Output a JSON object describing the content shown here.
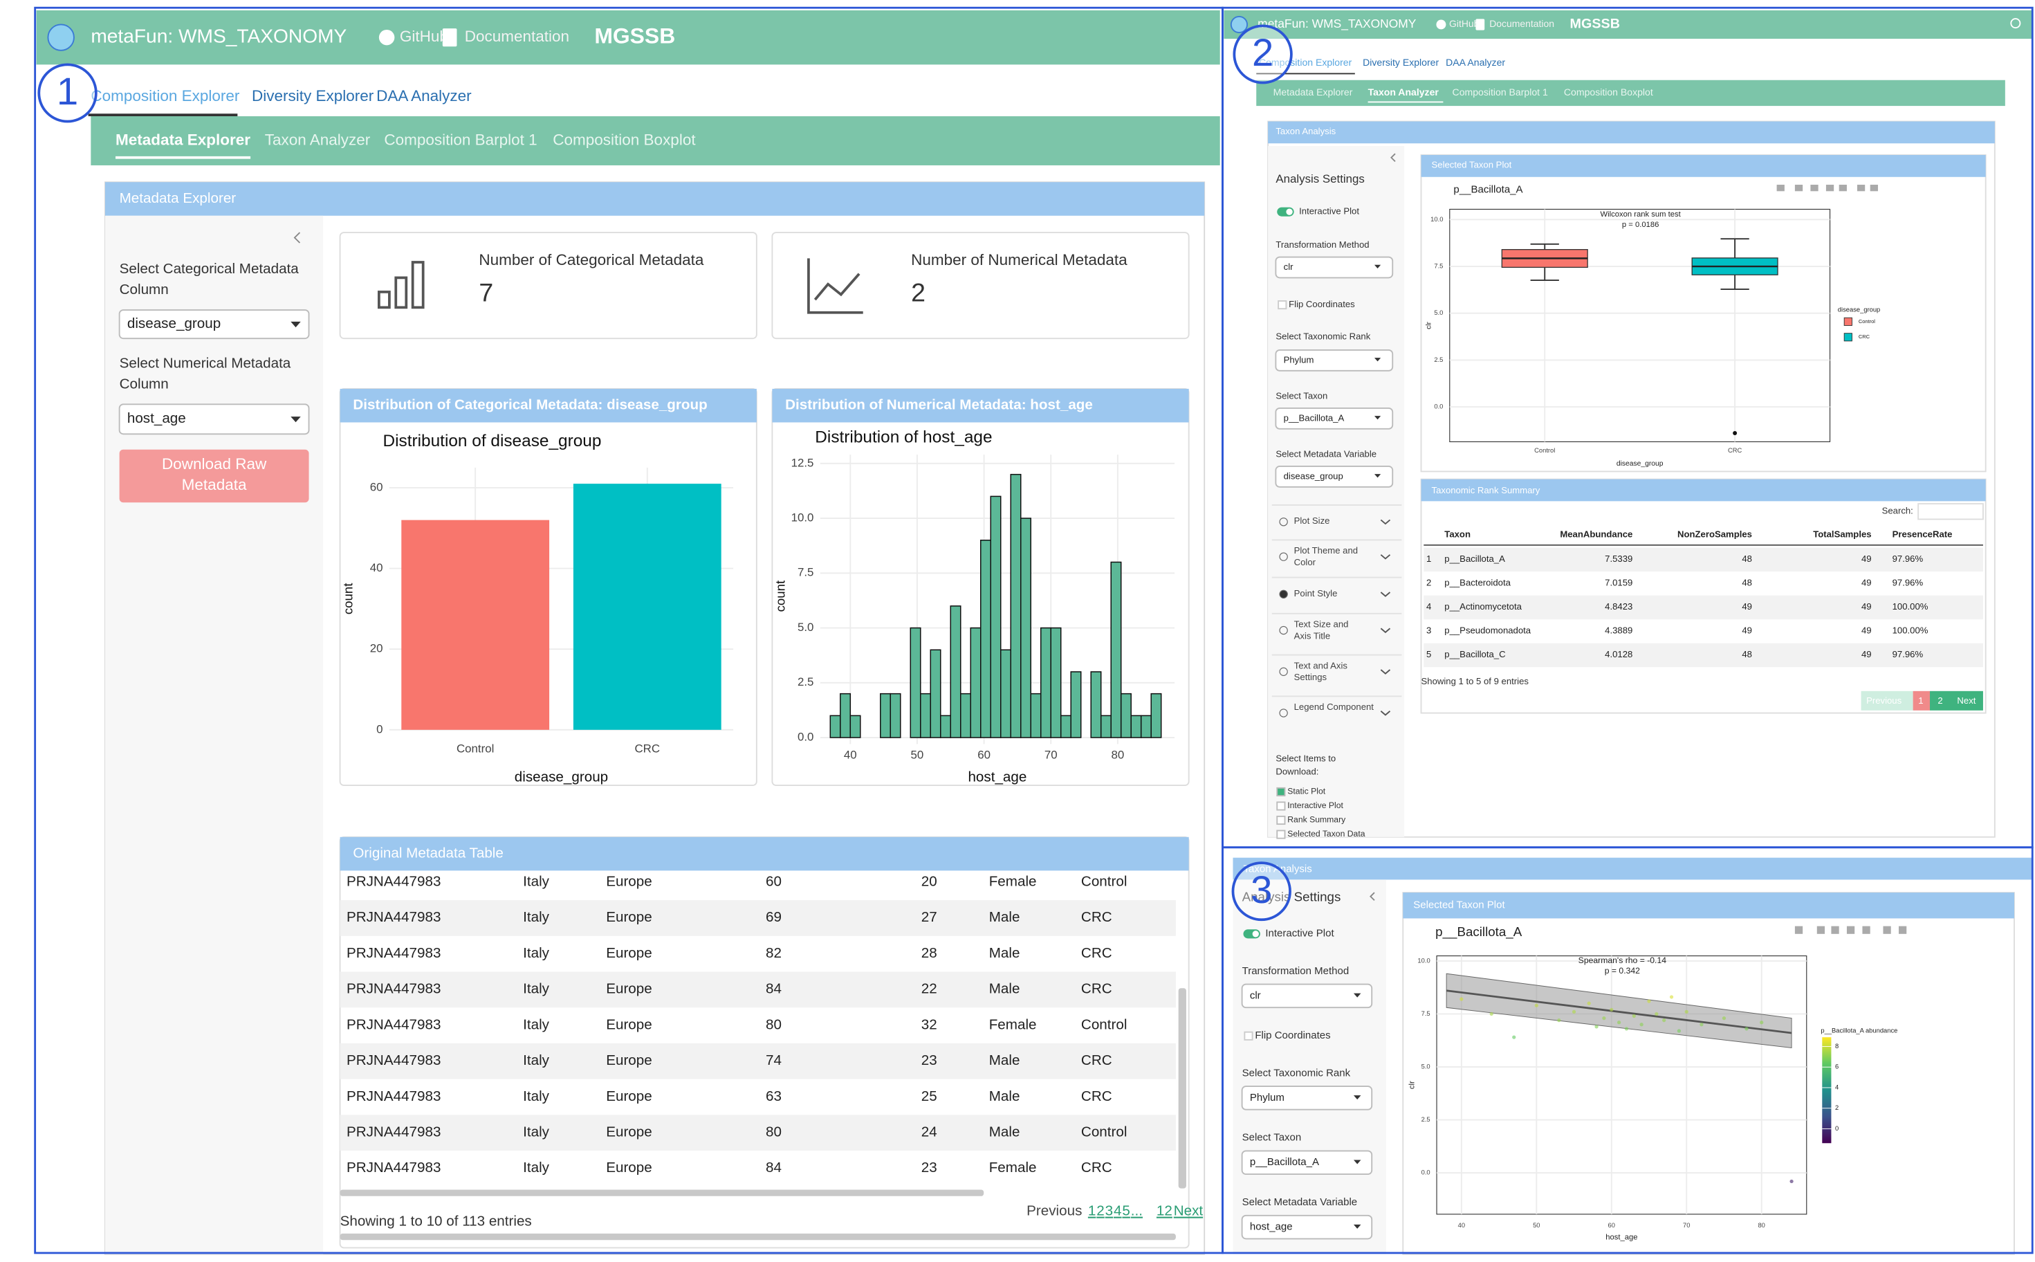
{
  "panel_labels": [
    "1",
    "2",
    "3"
  ],
  "app": {
    "title": "metaFun: WMS_TAXONOMY",
    "github": "GitHub",
    "docs": "Documentation",
    "brand": "MGSSB"
  },
  "main_tabs": [
    "Composition Explorer",
    "Diversity Explorer",
    "DAA Analyzer"
  ],
  "sub_tabs": [
    "Metadata Explorer",
    "Taxon Analyzer",
    "Composition Barplot 1",
    "Composition Boxplot"
  ],
  "panel1": {
    "section_title": "Metadata Explorer",
    "categorical_label": "Select Categorical Metadata Column",
    "categorical_value": "disease_group",
    "numerical_label": "Select Numerical Metadata Column",
    "numerical_value": "host_age",
    "download_button": "Download Raw Metadata",
    "stat_cards": [
      {
        "label": "Number of Categorical Metadata",
        "value": 7
      },
      {
        "label": "Number of Numerical Metadata",
        "value": 2
      }
    ],
    "bar_chart": {
      "type": "bar",
      "header": "Distribution of Categorical Metadata: disease_group",
      "title": "Distribution of disease_group",
      "x_label": "disease_group",
      "y_label": "count",
      "categories": [
        "Control",
        "CRC"
      ],
      "values": [
        52,
        61
      ],
      "colors": [
        "#f8766d",
        "#00bfc4"
      ],
      "ylim": [
        0,
        65
      ],
      "yticks": [
        0,
        20,
        40,
        60
      ]
    },
    "histogram": {
      "type": "histogram",
      "header": "Distribution of Numerical Metadata: host_age",
      "title": "Distribution of host_age",
      "x_label": "host_age",
      "y_label": "count",
      "color": "#5cb897",
      "bins": [
        37,
        38.5,
        40,
        41.5,
        43,
        44.5,
        46,
        47.5,
        49,
        50.5,
        52,
        53.5,
        55,
        56.5,
        58,
        59.5,
        61,
        62.5,
        64,
        65.5,
        67,
        68.5,
        70,
        71.5,
        73,
        74.5,
        76,
        77.5,
        79,
        80.5,
        82,
        83.5,
        85,
        86.5
      ],
      "counts": [
        1,
        2,
        1,
        0,
        0,
        2,
        2,
        0,
        5,
        2,
        4,
        1,
        6,
        2,
        5,
        9,
        11,
        4,
        12,
        10,
        2,
        5,
        5,
        1,
        3,
        0,
        3,
        1,
        8,
        2,
        1,
        1,
        2
      ],
      "xlim": [
        35.5,
        88.5
      ],
      "xticks": [
        40,
        50,
        60,
        70,
        80
      ],
      "ylim": [
        0,
        12.9
      ],
      "yticks": [
        {
          "value": 0,
          "label": "0.0"
        },
        2.5,
        {
          "value": 5,
          "label": "5.0"
        },
        7.5,
        {
          "value": 10,
          "label": "10.0"
        },
        12.5
      ]
    },
    "table": {
      "title": "Original Metadata Table",
      "rows": [
        [
          "PRJNA447983",
          "Italy",
          "Europe",
          "60",
          "20",
          "Female",
          "Control"
        ],
        [
          "PRJNA447983",
          "Italy",
          "Europe",
          "69",
          "27",
          "Male",
          "CRC"
        ],
        [
          "PRJNA447983",
          "Italy",
          "Europe",
          "82",
          "28",
          "Male",
          "CRC"
        ],
        [
          "PRJNA447983",
          "Italy",
          "Europe",
          "84",
          "22",
          "Male",
          "CRC"
        ],
        [
          "PRJNA447983",
          "Italy",
          "Europe",
          "80",
          "32",
          "Female",
          "Control"
        ],
        [
          "PRJNA447983",
          "Italy",
          "Europe",
          "74",
          "23",
          "Male",
          "CRC"
        ],
        [
          "PRJNA447983",
          "Italy",
          "Europe",
          "63",
          "25",
          "Male",
          "CRC"
        ],
        [
          "PRJNA447983",
          "Italy",
          "Europe",
          "80",
          "24",
          "Male",
          "Control"
        ],
        [
          "PRJNA447983",
          "Italy",
          "Europe",
          "84",
          "23",
          "Female",
          "CRC"
        ]
      ],
      "info": "Showing 1 to 10 of 113 entries",
      "previous": "Previous",
      "pages": [
        "1",
        "2",
        "3",
        "4",
        "5",
        "...",
        "12"
      ],
      "next": "Next"
    }
  },
  "panel2": {
    "section_title": "Taxon Analysis",
    "settings_title": "Analysis Settings",
    "settings": {
      "interactive": "Interactive Plot",
      "transform_label": "Transformation Method",
      "transform_value": "clr",
      "flip": "Flip Coordinates",
      "rank_label": "Select Taxonomic Rank",
      "rank_value": "Phylum",
      "taxon_label": "Select Taxon",
      "taxon_value": "p__Bacillota_A",
      "meta_label": "Select Metadata Variable",
      "meta_value": "disease_group"
    },
    "accordions": [
      "Plot Size",
      "Plot Theme and Color",
      "Point Style",
      "Text Size and Axis Title",
      "Text and Axis Settings",
      "Legend Component"
    ],
    "download_label": "Select Items to Download:",
    "download_items": [
      "Static Plot",
      "Interactive Plot",
      "Rank Summary",
      "Selected Taxon Data"
    ],
    "plot_card": "Selected Taxon Plot",
    "boxplot": {
      "type": "box",
      "title": "p__Bacillota_A",
      "test": "Wilcoxon rank sum test",
      "p_value": "p = 0.0186",
      "x_label": "disease_group",
      "y_label": "clr",
      "legend_title": "disease_group",
      "categories": [
        "Control",
        "CRC"
      ],
      "colors": [
        "#f8766d",
        "#00bfc4"
      ],
      "whisker_low": [
        6.76,
        6.28
      ],
      "q1": [
        7.45,
        7.05
      ],
      "median": [
        7.93,
        7.5
      ],
      "q3": [
        8.4,
        7.95
      ],
      "whisker_high": [
        8.69,
        8.97
      ],
      "outliers": [
        [],
        [
          -1.4
        ]
      ],
      "ylim": [
        -1.86,
        10.55
      ],
      "yticks": [
        {
          "value": 0,
          "label": "0.0"
        },
        2.5,
        {
          "value": 5,
          "label": "5.0"
        },
        7.5,
        {
          "value": 10,
          "label": "10.0"
        }
      ]
    },
    "summary": {
      "title": "Taxonomic Rank Summary",
      "search": "Search:",
      "columns": [
        "Taxon",
        "MeanAbundance",
        "NonZeroSamples",
        "TotalSamples",
        "PresenceRate"
      ],
      "rows": [
        [
          "1",
          "p__Bacillota_A",
          "7.5339",
          "48",
          "49",
          "97.96%"
        ],
        [
          "2",
          "p__Bacteroidota",
          "7.0159",
          "48",
          "49",
          "97.96%"
        ],
        [
          "4",
          "p__Actinomycetota",
          "4.8423",
          "49",
          "49",
          "100.00%"
        ],
        [
          "3",
          "p__Pseudomonadota",
          "4.3889",
          "49",
          "49",
          "100.00%"
        ],
        [
          "5",
          "p__Bacillota_C",
          "4.0128",
          "48",
          "49",
          "97.96%"
        ]
      ],
      "info": "Showing 1 to 5 of 9 entries",
      "previous": "Previous",
      "pages": [
        "1",
        "2"
      ],
      "next": "Next"
    }
  },
  "panel3": {
    "section_title": "Taxon Analysis",
    "settings_title": "Analysis Settings",
    "settings": {
      "interactive": "Interactive Plot",
      "transform_label": "Transformation Method",
      "transform_value": "clr",
      "flip": "Flip Coordinates",
      "rank_label": "Select Taxonomic Rank",
      "rank_value": "Phylum",
      "taxon_label": "Select Taxon",
      "taxon_value": "p__Bacillota_A",
      "meta_label": "Select Metadata Variable",
      "meta_value": "host_age"
    },
    "plot_card": "Selected Taxon Plot",
    "scatter": {
      "type": "scatter",
      "title": "p__Bacillota_A",
      "stat": "Spearman's rho = -0.14",
      "p_value": "p = 0.342",
      "x_label": "host_age",
      "y_label": "clr",
      "colorbar_title": "p__Bacillota_A abundance",
      "x": [
        40,
        44,
        47,
        50,
        53,
        55,
        57,
        58,
        59,
        60,
        61,
        62,
        63,
        64,
        65,
        66,
        67,
        68,
        69,
        70,
        72,
        75,
        78,
        80,
        84
      ],
      "y": [
        8.2,
        7.5,
        6.4,
        7.9,
        7.2,
        7.6,
        8.0,
        6.9,
        7.3,
        7.7,
        7.1,
        6.8,
        7.4,
        7.0,
        8.1,
        7.5,
        7.2,
        8.3,
        6.7,
        7.6,
        7.0,
        7.3,
        6.8,
        7.1,
        -0.4
      ],
      "line": {
        "x": [
          38,
          84
        ],
        "y": [
          8.6,
          6.6
        ],
        "ci_lower": [
          7.8,
          5.9
        ],
        "ci_upper": [
          9.4,
          7.3
        ]
      },
      "xlim": [
        36.7,
        86
      ],
      "xticks": [
        40,
        50,
        60,
        70,
        80
      ],
      "ylim": [
        -1.95,
        10.24
      ],
      "yticks": [
        {
          "value": 0,
          "label": "0.0"
        },
        2.5,
        {
          "value": 5,
          "label": "5.0"
        },
        7.5,
        {
          "value": 10,
          "label": "10.0"
        }
      ],
      "clim": [
        -1.4,
        8.9
      ],
      "cticks": [
        0,
        2,
        4,
        6,
        8
      ]
    }
  }
}
